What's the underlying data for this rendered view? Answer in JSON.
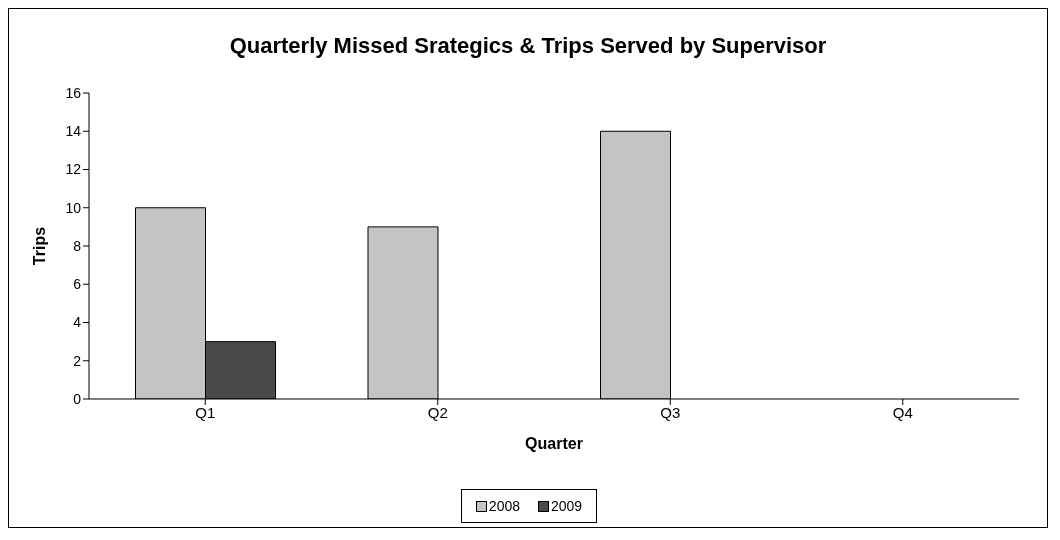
{
  "chart_data": {
    "type": "bar",
    "title": "Quarterly Missed Srategics & Trips Served by Supervisor",
    "xlabel": "Quarter",
    "ylabel": "Trips",
    "categories": [
      "Q1",
      "Q2",
      "Q3",
      "Q4"
    ],
    "series": [
      {
        "name": "2008",
        "color": "#c4c4c4",
        "values": [
          10,
          9,
          14,
          null
        ]
      },
      {
        "name": "2009",
        "color": "#4a4a4a",
        "values": [
          3,
          null,
          null,
          null
        ]
      }
    ],
    "ylim": [
      0,
      16
    ],
    "yticks": [
      0,
      2,
      4,
      6,
      8,
      10,
      12,
      14,
      16
    ],
    "grid": false,
    "legend": "bottom"
  }
}
